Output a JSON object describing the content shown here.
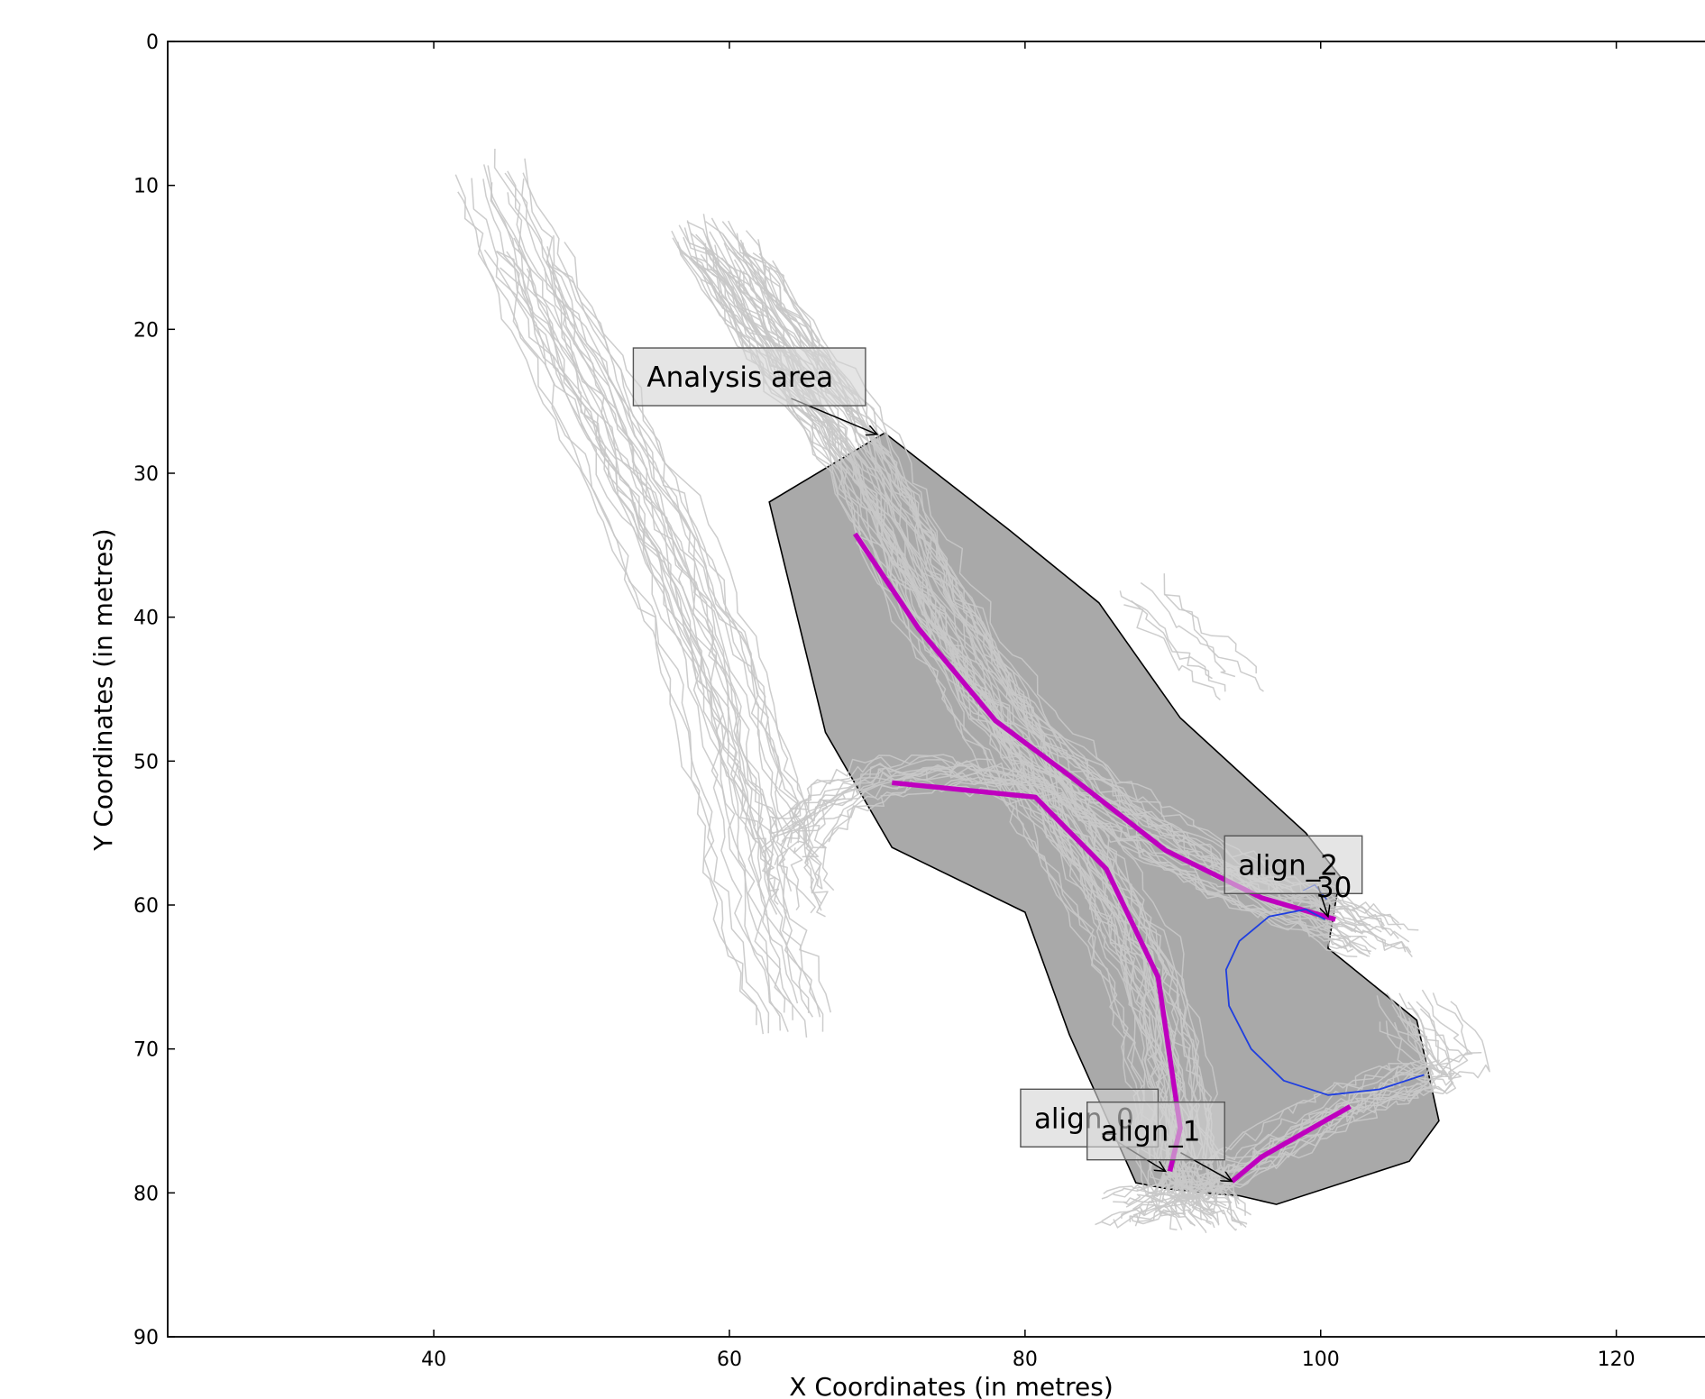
{
  "chart_data": {
    "type": "line",
    "xlabel": "X Coordinates (in metres)",
    "ylabel": "Y Coordinates (in metres)",
    "xlim": [
      22,
      126
    ],
    "ylim": [
      90,
      0
    ],
    "y_inverted": true,
    "xticks": [
      40,
      60,
      80,
      100,
      120
    ],
    "yticks": [
      0,
      10,
      20,
      30,
      40,
      50,
      60,
      70,
      80,
      90
    ],
    "grid": false,
    "colors": {
      "area_fill": "#a9a9a9",
      "area_edge": "#000000",
      "trajectories": "#c8c8c8",
      "alignments": "#bf00bf",
      "circle": "#1f3fe0"
    },
    "analysis_area": [
      [
        70.5,
        27.2
      ],
      [
        62.7,
        32.0
      ],
      [
        66.5,
        48.0
      ],
      [
        71.0,
        56.0
      ],
      [
        80.0,
        60.5
      ],
      [
        83.0,
        69.0
      ],
      [
        87.5,
        79.3
      ],
      [
        89.5,
        79.7
      ],
      [
        92.0,
        80.0
      ],
      [
        94.5,
        80.2
      ],
      [
        97.0,
        80.8
      ],
      [
        106.0,
        77.8
      ],
      [
        108.0,
        75.0
      ],
      [
        106.5,
        68.0
      ],
      [
        100.5,
        63.0
      ],
      [
        101.3,
        58.0
      ],
      [
        99.0,
        55.0
      ],
      [
        90.5,
        47.0
      ],
      [
        85.0,
        39.0
      ],
      [
        79.0,
        34.0
      ]
    ],
    "alignments": [
      {
        "name": "align_0",
        "points": [
          [
            68.5,
            34.2
          ],
          [
            72.8,
            40.8
          ],
          [
            78.0,
            47.2
          ],
          [
            83.0,
            51.0
          ],
          [
            89.5,
            56.2
          ],
          [
            96.0,
            59.5
          ],
          [
            101.0,
            61.0
          ]
        ]
      },
      {
        "name": "align_1",
        "points": [
          [
            71.0,
            51.5
          ],
          [
            80.7,
            52.5
          ],
          [
            85.5,
            57.5
          ],
          [
            89.0,
            65.0
          ],
          [
            90.5,
            75.5
          ],
          [
            89.8,
            78.5
          ]
        ]
      },
      {
        "name": "align_2",
        "points": [
          [
            94.0,
            79.2
          ],
          [
            96.0,
            77.5
          ],
          [
            102.0,
            74.0
          ]
        ]
      }
    ],
    "circle_arc": [
      [
        107.0,
        71.8
      ],
      [
        104.0,
        72.8
      ],
      [
        100.5,
        73.2
      ],
      [
        97.5,
        72.2
      ],
      [
        95.3,
        70.0
      ],
      [
        93.8,
        67.0
      ],
      [
        93.6,
        64.5
      ],
      [
        94.5,
        62.5
      ],
      [
        96.5,
        60.8
      ],
      [
        99.0,
        60.3
      ],
      [
        100.3,
        61.0
      ]
    ],
    "annotations": [
      {
        "text": "Analysis area",
        "box_at": [
          53.5,
          23.3
        ],
        "arrow_to": [
          70.0,
          27.3
        ]
      },
      {
        "text": "align_0",
        "box_at": [
          79.7,
          74.8
        ],
        "arrow_to": [
          89.5,
          78.5
        ]
      },
      {
        "text": "align_1",
        "box_at": [
          84.2,
          75.7
        ],
        "arrow_to": [
          94.0,
          79.2
        ]
      },
      {
        "text": "align_2",
        "box_at": [
          93.5,
          57.2
        ],
        "arrow_to": [
          100.5,
          60.8
        ]
      },
      {
        "text": "30",
        "box_at": null,
        "arrow_to": [
          100.8,
          59.2
        ]
      }
    ],
    "trajectory_groups": [
      {
        "count": 14,
        "path": [
          [
            44.0,
            9.0
          ],
          [
            47.0,
            17.0
          ],
          [
            51.0,
            26.0
          ],
          [
            55.0,
            35.0
          ],
          [
            58.5,
            44.0
          ],
          [
            60.5,
            53.0
          ],
          [
            62.0,
            61.0
          ],
          [
            64.5,
            68.0
          ]
        ]
      },
      {
        "count": 14,
        "path": [
          [
            46.5,
            15.0
          ],
          [
            51.0,
            24.0
          ],
          [
            55.5,
            33.0
          ],
          [
            59.5,
            42.0
          ],
          [
            62.0,
            50.0
          ],
          [
            64.0,
            56.0
          ],
          [
            65.0,
            60.0
          ]
        ]
      },
      {
        "count": 28,
        "path": [
          [
            58.5,
            13.5
          ],
          [
            63.0,
            20.5
          ],
          [
            68.0,
            27.0
          ],
          [
            72.0,
            35.0
          ],
          [
            76.0,
            42.0
          ],
          [
            80.0,
            48.0
          ],
          [
            85.0,
            52.5
          ],
          [
            90.0,
            56.0
          ],
          [
            95.5,
            59.0
          ],
          [
            100.5,
            60.8
          ],
          [
            104.0,
            62.5
          ]
        ]
      },
      {
        "count": 24,
        "path": [
          [
            60.0,
            15.0
          ],
          [
            65.0,
            23.0
          ],
          [
            69.5,
            30.0
          ],
          [
            73.0,
            38.0
          ],
          [
            77.0,
            45.0
          ],
          [
            81.0,
            52.0
          ],
          [
            84.5,
            58.0
          ],
          [
            88.0,
            65.0
          ],
          [
            89.8,
            72.0
          ],
          [
            90.5,
            79.0
          ],
          [
            92.5,
            81.5
          ]
        ]
      },
      {
        "count": 16,
        "path": [
          [
            64.0,
            56.0
          ],
          [
            67.0,
            53.0
          ],
          [
            70.5,
            51.2
          ],
          [
            76.0,
            51.0
          ],
          [
            81.0,
            52.0
          ],
          [
            85.0,
            57.0
          ],
          [
            88.5,
            64.0
          ],
          [
            90.2,
            72.0
          ],
          [
            91.0,
            79.5
          ],
          [
            93.0,
            81.8
          ]
        ]
      },
      {
        "count": 18,
        "path": [
          [
            87.5,
            81.0
          ],
          [
            91.0,
            80.0
          ],
          [
            94.5,
            78.5
          ],
          [
            98.0,
            76.5
          ],
          [
            102.0,
            74.0
          ],
          [
            106.0,
            72.5
          ],
          [
            109.5,
            71.5
          ],
          [
            106.5,
            67.0
          ]
        ]
      },
      {
        "count": 6,
        "path": [
          [
            88.5,
            38.0
          ],
          [
            92.0,
            42.0
          ],
          [
            94.8,
            44.5
          ]
        ]
      }
    ]
  }
}
